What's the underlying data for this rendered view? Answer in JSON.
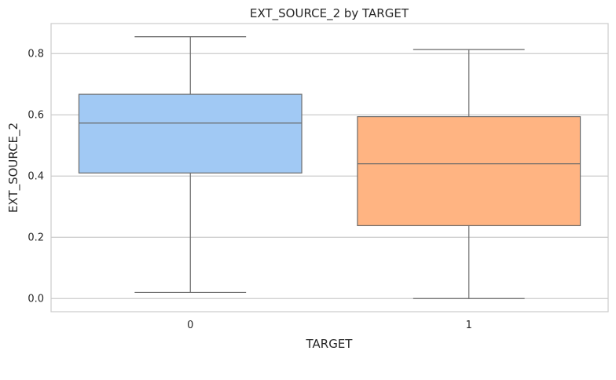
{
  "chart_data": {
    "type": "box",
    "title": "EXT_SOURCE_2 by TARGET",
    "xlabel": "TARGET",
    "ylabel": "EXT_SOURCE_2",
    "categories": [
      "0",
      "1"
    ],
    "boxes": [
      {
        "category": "0",
        "whisker_low": 0.02,
        "q1": 0.41,
        "median": 0.573,
        "q3": 0.667,
        "whisker_high": 0.855,
        "color": "#a1c9f4"
      },
      {
        "category": "1",
        "whisker_low": 0.0,
        "q1": 0.238,
        "median": 0.44,
        "q3": 0.594,
        "whisker_high": 0.813,
        "color": "#ffb482"
      }
    ],
    "yticks": [
      0.0,
      0.2,
      0.4,
      0.6,
      0.8
    ],
    "ytick_labels": [
      "0.0",
      "0.2",
      "0.4",
      "0.6",
      "0.8"
    ],
    "ylim": [
      -0.043,
      0.898
    ],
    "grid": true,
    "colors": {
      "grid": "#cccccc",
      "spine": "#cccccc",
      "line": "#6a6a6a"
    }
  }
}
